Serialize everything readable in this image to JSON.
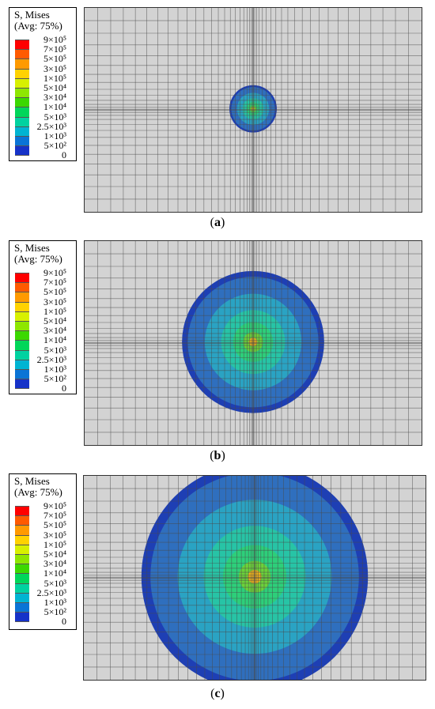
{
  "legend": {
    "title_line1": "S, Mises",
    "title_line2": "(Avg: 75%)",
    "levels": [
      {
        "label": "9×10⁵",
        "color": "#ff0000"
      },
      {
        "label": "7×10⁵",
        "color": "#ff5a00"
      },
      {
        "label": "5×10⁵",
        "color": "#ff9a00"
      },
      {
        "label": "3×10⁵",
        "color": "#ffd200"
      },
      {
        "label": "1×10⁵",
        "color": "#d8f000"
      },
      {
        "label": "5×10⁴",
        "color": "#8ee600"
      },
      {
        "label": "3×10⁴",
        "color": "#3bd800"
      },
      {
        "label": "1×10⁴",
        "color": "#00d65a"
      },
      {
        "label": "5×10³",
        "color": "#00d2a0"
      },
      {
        "label": "2.5×10³",
        "color": "#00b4d2"
      },
      {
        "label": "1×10³",
        "color": "#0a74d6"
      },
      {
        "label": "5×10²",
        "color": "#1632c8"
      },
      {
        "label": "0",
        "color": "#ffffff"
      }
    ]
  },
  "panels": [
    {
      "caption_open": "(",
      "caption_letter": "a",
      "caption_close": ")",
      "plume_radius_fraction": 0.07
    },
    {
      "caption_open": "(",
      "caption_letter": "b",
      "caption_close": ")",
      "plume_radius_fraction": 0.21
    },
    {
      "caption_open": "(",
      "caption_letter": "c",
      "caption_close": ")",
      "plume_radius_fraction": 0.33
    }
  ],
  "contour_colors": {
    "outer_ring": "#1e3fb4",
    "band_1e3": "#2f6fbe",
    "band_2_5e3": "#2aa3c3",
    "band_5e3": "#27c4a6",
    "band_1e4": "#2dcf7a",
    "band_3e4": "#6bd23a",
    "core": "#f2b51a",
    "mesh_fill": "#d3d3d3",
    "mesh_line": "#4a4a4a"
  }
}
